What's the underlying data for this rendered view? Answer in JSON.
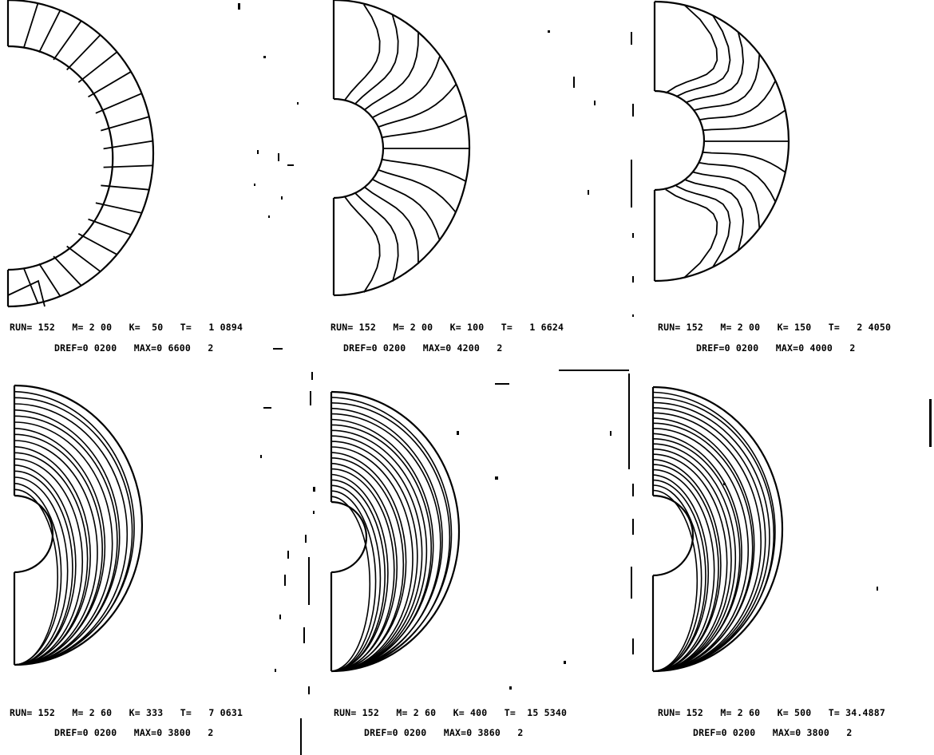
{
  "panels": [
    {
      "line1": "RUN= 152   M= 2 00   K=  50   T=   1 0894",
      "line2": "DREF=0 0200   MAX=0 6600   2",
      "contours": [
        "radial",
        18
      ]
    },
    {
      "line1": "RUN= 152   M= 2 00   K= 100   T=   1 6624",
      "line2": "DREF=0 0200   MAX=0 4200   2",
      "contours": [
        "swirl",
        13
      ]
    },
    {
      "line1": "RUN= 152   M= 2 00   K= 150   T=   2 4050",
      "line2": "DREF=0 0200   MAX=0 4000   2",
      "contours": [
        "swirl2",
        13
      ]
    },
    {
      "line1": "RUN= 152   M= 2 60   K= 333   T=   7 0631",
      "line2": "DREF=0 0200   MAX=0 3800   2",
      "contours": [
        "arcs",
        17
      ]
    },
    {
      "line1": "RUN= 152   M= 2 60   K= 400   T=  15 5340",
      "line2": "DREF=0 0200   MAX=0 3860   2",
      "contours": [
        "arcs",
        19
      ]
    },
    {
      "line1": "RUN= 152   M= 2 60   K= 500   T= 34.4887",
      "line2": "DREF=0 0200   MAX=0 3800   2",
      "contours": [
        "arcs",
        20
      ]
    }
  ]
}
